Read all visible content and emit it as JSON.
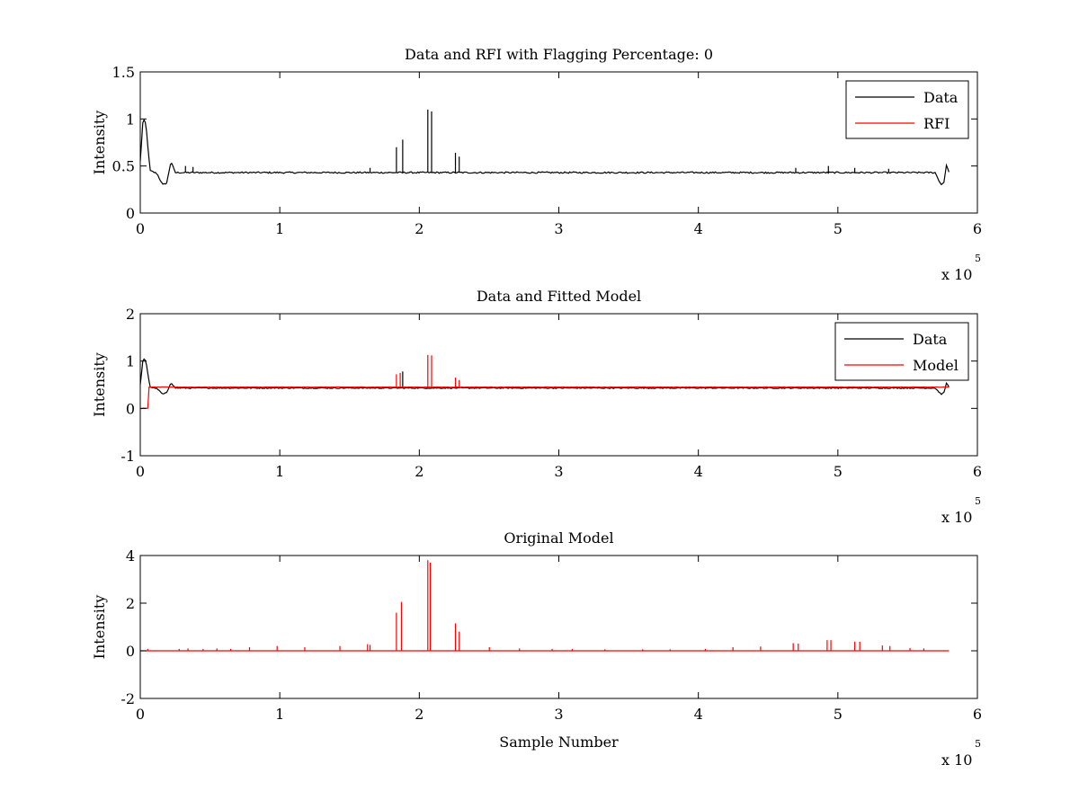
{
  "figure": {
    "background": "#ffffff"
  },
  "chart_data": [
    {
      "type": "line",
      "title": "Data and RFI with Flagging Percentage: 0",
      "xlabel": "",
      "ylabel": "Intensity",
      "xlim": [
        0,
        600000
      ],
      "ylim": [
        0,
        1.5
      ],
      "xticks": [
        0,
        100000,
        200000,
        300000,
        400000,
        500000,
        600000
      ],
      "xtick_labels": [
        "0",
        "1",
        "2",
        "3",
        "4",
        "5",
        "6"
      ],
      "yticks": [
        0,
        0.5,
        1,
        1.5
      ],
      "ytick_labels": [
        "0",
        "0.5",
        "1",
        "1.5"
      ],
      "x_exponent": {
        "base": "x 10",
        "power": "5"
      },
      "legend": {
        "position": "top-right"
      },
      "series": [
        {
          "name": "Data",
          "color": "#000000",
          "baseline": 0.43,
          "noise": 0.008,
          "x_end": 580000,
          "bumps": [
            {
              "x": 0,
              "y": 0.55
            },
            {
              "x": 2000,
              "y": 1.0
            },
            {
              "x": 4000,
              "y": 0.95
            },
            {
              "x": 7000,
              "y": 0.45
            },
            {
              "x": 12000,
              "y": 0.42
            },
            {
              "x": 16000,
              "y": 0.3
            },
            {
              "x": 19000,
              "y": 0.32
            },
            {
              "x": 22000,
              "y": 0.55
            },
            {
              "x": 25000,
              "y": 0.43
            },
            {
              "x": 570000,
              "y": 0.42
            },
            {
              "x": 574000,
              "y": 0.3
            },
            {
              "x": 576000,
              "y": 0.33
            },
            {
              "x": 578000,
              "y": 0.52
            },
            {
              "x": 580000,
              "y": 0.41
            }
          ],
          "spikes": [
            {
              "x": 32000,
              "y": 0.5
            },
            {
              "x": 38000,
              "y": 0.49
            },
            {
              "x": 165000,
              "y": 0.48
            },
            {
              "x": 184000,
              "y": 0.7
            },
            {
              "x": 188000,
              "y": 0.78
            },
            {
              "x": 206000,
              "y": 1.1
            },
            {
              "x": 209000,
              "y": 1.08
            },
            {
              "x": 226000,
              "y": 0.64
            },
            {
              "x": 229000,
              "y": 0.6
            },
            {
              "x": 470000,
              "y": 0.48
            },
            {
              "x": 493000,
              "y": 0.5
            },
            {
              "x": 512000,
              "y": 0.48
            },
            {
              "x": 536000,
              "y": 0.47
            }
          ]
        },
        {
          "name": "RFI",
          "color": "#ff0000",
          "baseline": 0,
          "noise": 0,
          "x_end": 0,
          "bumps": [],
          "spikes": []
        }
      ]
    },
    {
      "type": "line",
      "title": "Data and Fitted Model",
      "xlabel": "",
      "ylabel": "Intensity",
      "xlim": [
        0,
        600000
      ],
      "ylim": [
        -1,
        2
      ],
      "xticks": [
        0,
        100000,
        200000,
        300000,
        400000,
        500000,
        600000
      ],
      "xtick_labels": [
        "0",
        "1",
        "2",
        "3",
        "4",
        "5",
        "6"
      ],
      "yticks": [
        -1,
        0,
        1,
        2
      ],
      "ytick_labels": [
        "-1",
        "0",
        "1",
        "2"
      ],
      "x_exponent": {
        "base": "x 10",
        "power": "5"
      },
      "legend": {
        "position": "top-right"
      },
      "series": [
        {
          "name": "Data",
          "color": "#000000",
          "baseline": 0.43,
          "noise": 0.01,
          "x_end": 580000,
          "bumps": [
            {
              "x": 0,
              "y": 0.5
            },
            {
              "x": 2000,
              "y": 1.05
            },
            {
              "x": 4000,
              "y": 1.0
            },
            {
              "x": 7000,
              "y": 0.45
            },
            {
              "x": 12000,
              "y": 0.42
            },
            {
              "x": 16000,
              "y": 0.3
            },
            {
              "x": 19000,
              "y": 0.33
            },
            {
              "x": 22000,
              "y": 0.55
            },
            {
              "x": 25000,
              "y": 0.43
            },
            {
              "x": 570000,
              "y": 0.42
            },
            {
              "x": 574000,
              "y": 0.3
            },
            {
              "x": 576000,
              "y": 0.33
            },
            {
              "x": 578000,
              "y": 0.55
            },
            {
              "x": 580000,
              "y": 0.42
            }
          ],
          "spikes": [
            {
              "x": 188000,
              "y": 0.78
            }
          ]
        },
        {
          "name": "Model",
          "color": "#ff0000",
          "baseline": 0.45,
          "noise": 0.004,
          "x_start": 0,
          "x_end": 580000,
          "bumps": [
            {
              "x": 0,
              "y": 0
            },
            {
              "x": 5500,
              "y": 0
            },
            {
              "x": 6000,
              "y": 0.45
            },
            {
              "x": 580000,
              "y": 0.43
            }
          ],
          "spikes": [
            {
              "x": 184000,
              "y": 0.72
            },
            {
              "x": 186000,
              "y": 0.75
            },
            {
              "x": 206000,
              "y": 1.13
            },
            {
              "x": 209000,
              "y": 1.12
            },
            {
              "x": 226000,
              "y": 0.65
            },
            {
              "x": 229000,
              "y": 0.6
            }
          ]
        }
      ]
    },
    {
      "type": "line",
      "title": "Original Model",
      "xlabel": "Sample Number",
      "ylabel": "Intensity",
      "xlim": [
        0,
        600000
      ],
      "ylim": [
        -2,
        4
      ],
      "xticks": [
        0,
        100000,
        200000,
        300000,
        400000,
        500000,
        600000
      ],
      "xtick_labels": [
        "0",
        "1",
        "2",
        "3",
        "4",
        "5",
        "6"
      ],
      "yticks": [
        -2,
        0,
        2,
        4
      ],
      "ytick_labels": [
        "-2",
        "0",
        "2",
        "4"
      ],
      "x_exponent": {
        "base": "x 10",
        "power": "5"
      },
      "legend": null,
      "series": [
        {
          "name": "",
          "color": "#ff0000",
          "baseline": 0,
          "noise": 0,
          "x_end": 580000,
          "bumps": [],
          "spikes": [
            {
              "x": 5000,
              "y": 0.08
            },
            {
              "x": 28000,
              "y": 0.08
            },
            {
              "x": 34000,
              "y": 0.1
            },
            {
              "x": 45000,
              "y": 0.08
            },
            {
              "x": 55000,
              "y": 0.1
            },
            {
              "x": 65000,
              "y": 0.08
            },
            {
              "x": 78000,
              "y": 0.15
            },
            {
              "x": 98000,
              "y": 0.2
            },
            {
              "x": 118000,
              "y": 0.15
            },
            {
              "x": 143000,
              "y": 0.2
            },
            {
              "x": 163000,
              "y": 0.28
            },
            {
              "x": 165000,
              "y": 0.25
            },
            {
              "x": 184000,
              "y": 1.6
            },
            {
              "x": 187000,
              "y": 2.05
            },
            {
              "x": 206000,
              "y": 3.8
            },
            {
              "x": 208000,
              "y": 3.7
            },
            {
              "x": 226000,
              "y": 1.15
            },
            {
              "x": 229000,
              "y": 0.8
            },
            {
              "x": 250000,
              "y": 0.15
            },
            {
              "x": 272000,
              "y": 0.1
            },
            {
              "x": 295000,
              "y": 0.08
            },
            {
              "x": 310000,
              "y": 0.08
            },
            {
              "x": 333000,
              "y": 0.06
            },
            {
              "x": 360000,
              "y": 0.06
            },
            {
              "x": 380000,
              "y": 0.06
            },
            {
              "x": 405000,
              "y": 0.08
            },
            {
              "x": 425000,
              "y": 0.15
            },
            {
              "x": 445000,
              "y": 0.18
            },
            {
              "x": 468000,
              "y": 0.32
            },
            {
              "x": 472000,
              "y": 0.3
            },
            {
              "x": 492000,
              "y": 0.45
            },
            {
              "x": 495000,
              "y": 0.45
            },
            {
              "x": 512000,
              "y": 0.38
            },
            {
              "x": 516000,
              "y": 0.38
            },
            {
              "x": 532000,
              "y": 0.22
            },
            {
              "x": 537000,
              "y": 0.2
            },
            {
              "x": 552000,
              "y": 0.12
            },
            {
              "x": 562000,
              "y": 0.1
            }
          ]
        }
      ]
    }
  ]
}
